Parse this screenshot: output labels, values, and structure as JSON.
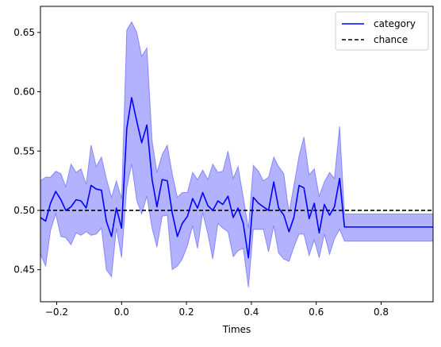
{
  "chart_data": {
    "type": "line",
    "title": "",
    "xlabel": "Times",
    "ylabel": "",
    "xlim": [
      -0.25,
      0.96
    ],
    "ylim": [
      0.423,
      0.672
    ],
    "grid": false,
    "legend_position": "top-right",
    "x_ticks": [
      -0.2,
      0.0,
      0.2,
      0.4,
      0.6,
      0.8
    ],
    "x_tick_labels": [
      "−0.2",
      "0.0",
      "0.2",
      "0.4",
      "0.6",
      "0.8"
    ],
    "y_ticks": [
      0.45,
      0.5,
      0.55,
      0.6,
      0.65
    ],
    "y_tick_labels": [
      "0.45",
      "0.50",
      "0.55",
      "0.60",
      "0.65"
    ],
    "series": [
      {
        "name": "category",
        "style": "solid",
        "color": "#0000ff",
        "x": [
          -0.25,
          -0.234,
          -0.219,
          -0.203,
          -0.187,
          -0.172,
          -0.156,
          -0.14,
          -0.125,
          -0.109,
          -0.094,
          -0.078,
          -0.062,
          -0.047,
          -0.031,
          -0.016,
          0.0,
          0.016,
          0.031,
          0.047,
          0.062,
          0.078,
          0.094,
          0.109,
          0.125,
          0.141,
          0.156,
          0.172,
          0.187,
          0.203,
          0.219,
          0.234,
          0.25,
          0.266,
          0.281,
          0.297,
          0.312,
          0.328,
          0.344,
          0.359,
          0.375,
          0.391,
          0.406,
          0.422,
          0.437,
          0.453,
          0.469,
          0.484,
          0.5,
          0.516,
          0.531,
          0.547,
          0.562,
          0.578,
          0.594,
          0.609,
          0.625,
          0.641,
          0.656,
          0.672,
          0.687,
          0.703,
          0.719,
          0.734,
          0.75,
          0.766,
          0.781,
          0.797,
          0.812,
          0.828,
          0.844,
          0.859,
          0.875,
          0.891,
          0.906,
          0.922,
          0.937,
          0.953,
          0.96
        ],
        "y": [
          0.494,
          0.491,
          0.506,
          0.516,
          0.509,
          0.5,
          0.503,
          0.509,
          0.508,
          0.502,
          0.521,
          0.518,
          0.517,
          0.491,
          0.478,
          0.502,
          0.485,
          0.569,
          0.595,
          0.575,
          0.557,
          0.572,
          0.526,
          0.503,
          0.526,
          0.525,
          0.498,
          0.478,
          0.489,
          0.495,
          0.51,
          0.502,
          0.515,
          0.504,
          0.5,
          0.508,
          0.505,
          0.512,
          0.494,
          0.502,
          0.489,
          0.46,
          0.511,
          0.506,
          0.503,
          0.5,
          0.524,
          0.502,
          0.496,
          0.482,
          0.494,
          0.521,
          0.519,
          0.493,
          0.506,
          0.481,
          0.505,
          0.496,
          0.503,
          0.527,
          0.486,
          0.486,
          0.486,
          0.486,
          0.486,
          0.486,
          0.486,
          0.486,
          0.486,
          0.486,
          0.486,
          0.486,
          0.486,
          0.486,
          0.486,
          0.486,
          0.486,
          0.486,
          0.486
        ],
        "lower": [
          0.463,
          0.453,
          0.483,
          0.497,
          0.478,
          0.477,
          0.471,
          0.481,
          0.479,
          0.482,
          0.479,
          0.48,
          0.485,
          0.45,
          0.444,
          0.485,
          0.46,
          0.519,
          0.539,
          0.508,
          0.497,
          0.512,
          0.485,
          0.469,
          0.495,
          0.496,
          0.45,
          0.453,
          0.459,
          0.47,
          0.487,
          0.468,
          0.498,
          0.48,
          0.459,
          0.489,
          0.485,
          0.482,
          0.461,
          0.466,
          0.468,
          0.435,
          0.484,
          0.484,
          0.484,
          0.465,
          0.487,
          0.464,
          0.459,
          0.457,
          0.469,
          0.48,
          0.48,
          0.462,
          0.475,
          0.46,
          0.48,
          0.463,
          0.476,
          0.484,
          0.474,
          0.474,
          0.474,
          0.474,
          0.474,
          0.474,
          0.474,
          0.474,
          0.474,
          0.474,
          0.474,
          0.474,
          0.474,
          0.474,
          0.474,
          0.474,
          0.474,
          0.474,
          0.474
        ],
        "upper": [
          0.525,
          0.528,
          0.528,
          0.533,
          0.531,
          0.52,
          0.539,
          0.532,
          0.535,
          0.522,
          0.555,
          0.537,
          0.545,
          0.527,
          0.511,
          0.525,
          0.51,
          0.652,
          0.659,
          0.65,
          0.63,
          0.637,
          0.559,
          0.532,
          0.547,
          0.555,
          0.531,
          0.511,
          0.515,
          0.515,
          0.532,
          0.526,
          0.534,
          0.526,
          0.539,
          0.532,
          0.533,
          0.55,
          0.527,
          0.537,
          0.511,
          0.485,
          0.538,
          0.533,
          0.525,
          0.528,
          0.545,
          0.537,
          0.531,
          0.498,
          0.521,
          0.546,
          0.562,
          0.53,
          0.535,
          0.512,
          0.524,
          0.532,
          0.527,
          0.571,
          0.497,
          0.497,
          0.497,
          0.497,
          0.497,
          0.497,
          0.497,
          0.497,
          0.497,
          0.497,
          0.497,
          0.497,
          0.497,
          0.497,
          0.497,
          0.497,
          0.497,
          0.497,
          0.497
        ]
      },
      {
        "name": "chance",
        "style": "dashed",
        "color": "#000000",
        "x": [
          -0.25,
          0.96
        ],
        "y": [
          0.5,
          0.5
        ]
      }
    ],
    "band_color": "#0000ff",
    "band_opacity": 0.3
  }
}
